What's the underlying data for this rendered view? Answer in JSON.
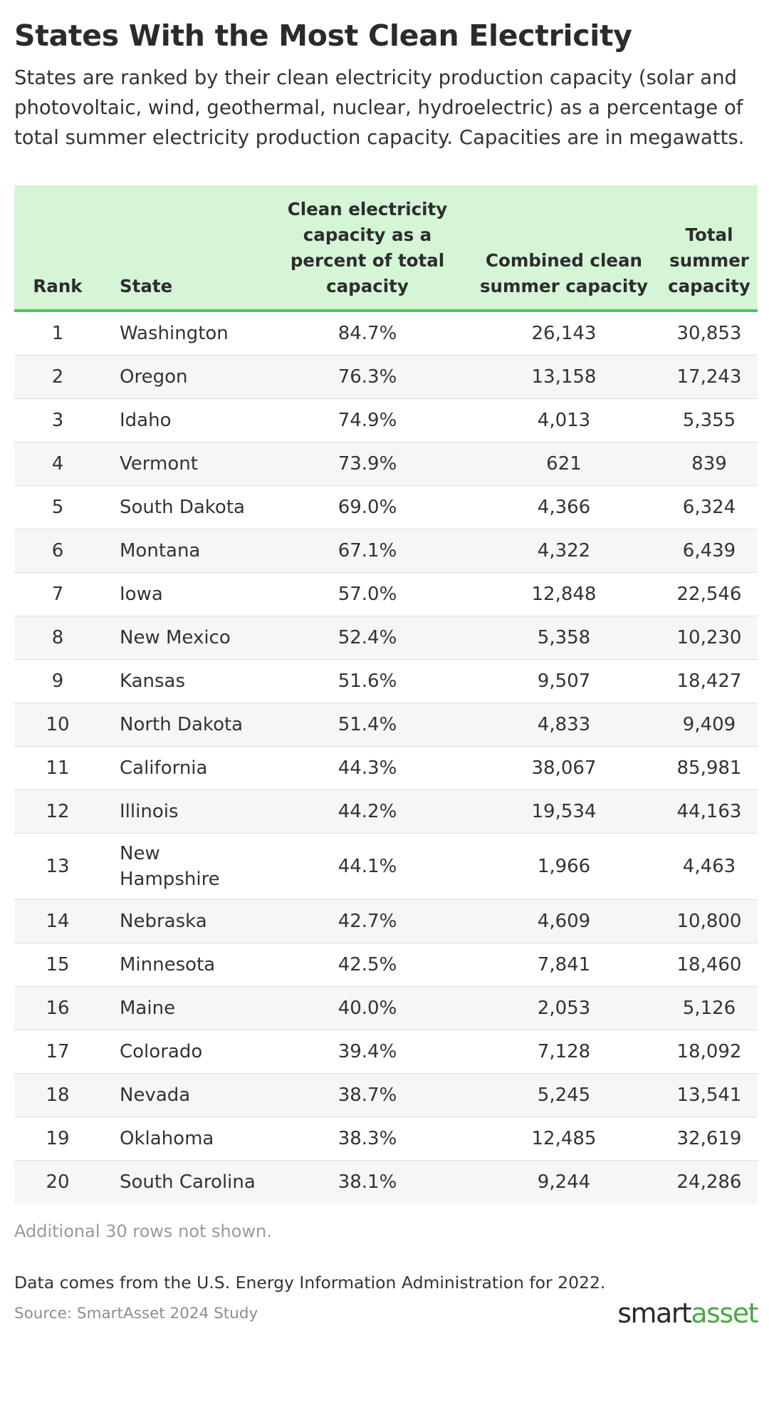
{
  "title": "States With the Most Clean Electricity",
  "subtitle": "States are ranked by their clean electricity production capacity (solar and photovoltaic, wind, geothermal, nuclear, hydroelectric) as a percentage of total summer electricity production capacity. Capacities are in megawatts.",
  "table": {
    "headers": {
      "rank": "Rank",
      "state": "State",
      "pct": "Clean electricity capacity as a percent of total capacity",
      "combined": "Combined clean summer capacity",
      "total": "Total summer capacity"
    },
    "rows": [
      {
        "rank": "1",
        "state": "Washington",
        "pct": "84.7%",
        "combined": "26,143",
        "total": "30,853"
      },
      {
        "rank": "2",
        "state": "Oregon",
        "pct": "76.3%",
        "combined": "13,158",
        "total": "17,243"
      },
      {
        "rank": "3",
        "state": "Idaho",
        "pct": "74.9%",
        "combined": "4,013",
        "total": "5,355"
      },
      {
        "rank": "4",
        "state": "Vermont",
        "pct": "73.9%",
        "combined": "621",
        "total": "839"
      },
      {
        "rank": "5",
        "state": "South Dakota",
        "pct": "69.0%",
        "combined": "4,366",
        "total": "6,324"
      },
      {
        "rank": "6",
        "state": "Montana",
        "pct": "67.1%",
        "combined": "4,322",
        "total": "6,439"
      },
      {
        "rank": "7",
        "state": "Iowa",
        "pct": "57.0%",
        "combined": "12,848",
        "total": "22,546"
      },
      {
        "rank": "8",
        "state": "New Mexico",
        "pct": "52.4%",
        "combined": "5,358",
        "total": "10,230"
      },
      {
        "rank": "9",
        "state": "Kansas",
        "pct": "51.6%",
        "combined": "9,507",
        "total": "18,427"
      },
      {
        "rank": "10",
        "state": "North Dakota",
        "pct": "51.4%",
        "combined": "4,833",
        "total": "9,409"
      },
      {
        "rank": "11",
        "state": "California",
        "pct": "44.3%",
        "combined": "38,067",
        "total": "85,981"
      },
      {
        "rank": "12",
        "state": "Illinois",
        "pct": "44.2%",
        "combined": "19,534",
        "total": "44,163"
      },
      {
        "rank": "13",
        "state": "New Hampshire",
        "pct": "44.1%",
        "combined": "1,966",
        "total": "4,463"
      },
      {
        "rank": "14",
        "state": "Nebraska",
        "pct": "42.7%",
        "combined": "4,609",
        "total": "10,800"
      },
      {
        "rank": "15",
        "state": "Minnesota",
        "pct": "42.5%",
        "combined": "7,841",
        "total": "18,460"
      },
      {
        "rank": "16",
        "state": "Maine",
        "pct": "40.0%",
        "combined": "2,053",
        "total": "5,126"
      },
      {
        "rank": "17",
        "state": "Colorado",
        "pct": "39.4%",
        "combined": "7,128",
        "total": "18,092"
      },
      {
        "rank": "18",
        "state": "Nevada",
        "pct": "38.7%",
        "combined": "5,245",
        "total": "13,541"
      },
      {
        "rank": "19",
        "state": "Oklahoma",
        "pct": "38.3%",
        "combined": "12,485",
        "total": "32,619"
      },
      {
        "rank": "20",
        "state": "South Carolina",
        "pct": "38.1%",
        "combined": "9,244",
        "total": "24,286"
      }
    ]
  },
  "footnote": "Additional 30 rows not shown.",
  "note": "Data comes from the U.S. Energy Information Administration for 2022.",
  "source": "Source: SmartAsset 2024 Study",
  "logo": {
    "part1": "smart",
    "part2": "asset"
  },
  "colors": {
    "header_bg": "#d5f5d7",
    "header_rule": "#55c35b",
    "logo_accent": "#4aa844"
  }
}
